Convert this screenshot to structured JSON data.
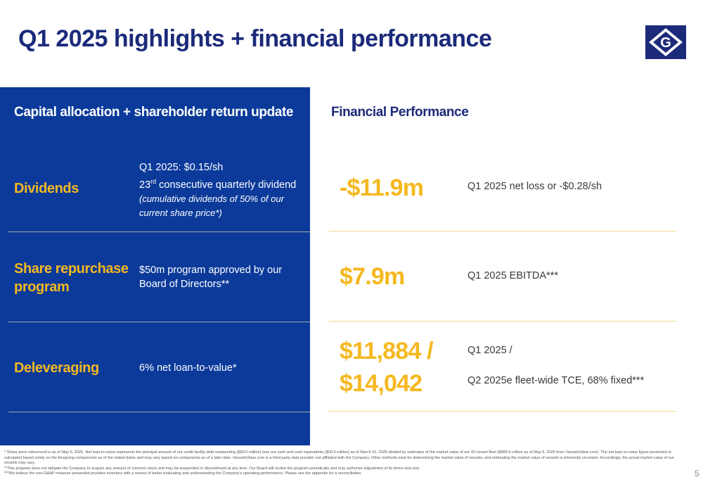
{
  "title": "Q1 2025 highlights + financial performance",
  "logo": {
    "letter": "G"
  },
  "left_panel": {
    "title": "Capital allocation + shareholder return update",
    "rows": [
      {
        "label": "Dividends",
        "line1": "Q1 2025: $0.15/sh",
        "ordinal_number": "23",
        "ordinal_suffix": "rd",
        "line2_rest": " consecutive quarterly dividend",
        "note": "(cumulative dividends of 50% of our current share price*)"
      },
      {
        "label": "Share repurchase program",
        "text": "$50m program approved by our Board of Directors**"
      },
      {
        "label": "Deleveraging",
        "text": "6% net loan-to-value*"
      }
    ]
  },
  "right_panel": {
    "title": "Financial Performance",
    "metrics": [
      {
        "value": "-$11.9m",
        "desc": "Q1 2025 net loss or -$0.28/sh"
      },
      {
        "value": "$7.9m",
        "desc": "Q1 2025 EBITDA***"
      },
      {
        "value_line1": "$11,884 /",
        "value_line2": "$14,042",
        "desc_line1": "Q1 2025 /",
        "desc_line2": "Q2 2025e fleet-wide TCE, 68% fixed***"
      }
    ]
  },
  "footnotes": [
    "* Share price referenced is as of May 6, 2025. Net loan-to-value represents the principal amount of our credit facility debt outstanding ($90.0 million) less our cash and cash equivalents ($30.6 million) as of March 31, 2025 divided by estimates of the market value of our 42-vessel fleet ($989.9 million as of May 6, 2025 from VesselsValue.com). The net loan-to-value figure presented is calculated based solely on the foregoing components as of the stated dates and may vary based on components as of a later date. VesselsValue.com is a third party data provider not affiliated with the Company. Other methods exist for determining the market value of vessels, and estimating the market value of vessels is inherently uncertain. Accordingly, the actual market value of our vessels may vary.",
    "**This program does not obligate the Company to acquire any amount of common stock and may be suspended or discontinued at any time. Our Board will review the program periodically and may authorize adjustment of its terms and size.",
    "***We believe the non-GAAP measure presented provides investors with a means of better evaluating and understanding the Company's operating performance. Please see the appendix for a reconciliation."
  ],
  "page_number": "5",
  "colors": {
    "navy": "#1c2a7a",
    "panel_blue": "#0b3a9a",
    "gold": "#f5b820"
  }
}
